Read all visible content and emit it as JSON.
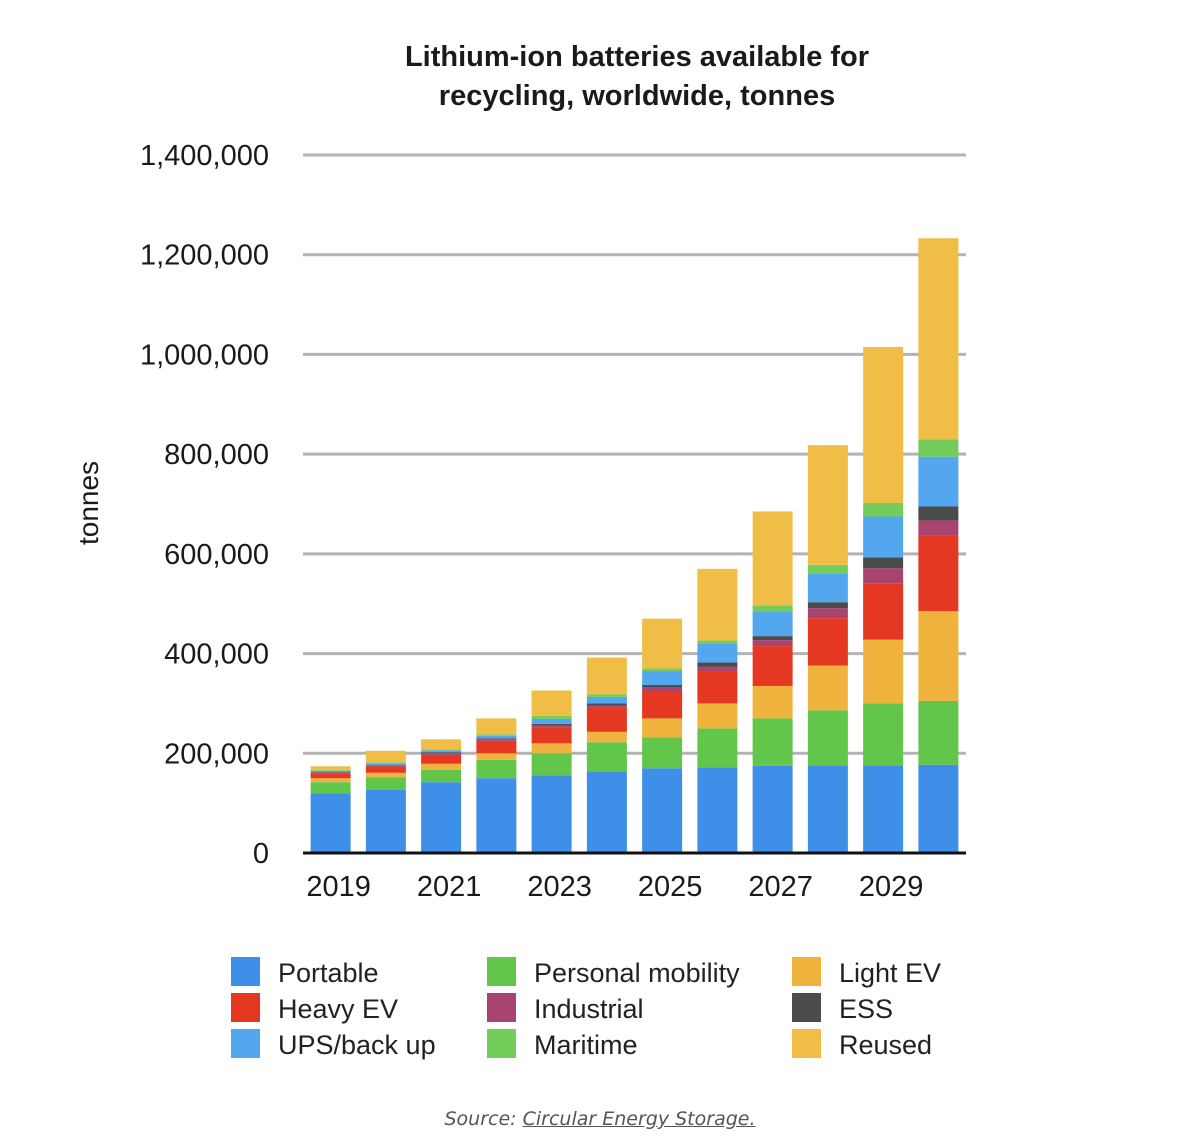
{
  "chart_data": {
    "type": "bar",
    "stacked": true,
    "title": [
      "Lithium-ion batteries available for",
      "recycling, worldwide, tonnes"
    ],
    "ylabel": "tonnes",
    "xlabel": "",
    "ylim": [
      0,
      1400000
    ],
    "yticks": [
      0,
      200000,
      400000,
      600000,
      800000,
      1000000,
      1200000,
      1400000
    ],
    "ytick_labels": [
      "0",
      "200,000",
      "400,000",
      "600,000",
      "800,000",
      "1,000,000",
      "1,200,000",
      "1,400,000"
    ],
    "categories": [
      "2019",
      "2020",
      "2021",
      "2022",
      "2023",
      "2024",
      "2025",
      "2026",
      "2027",
      "2028",
      "2029",
      "2030"
    ],
    "xtick_labels": [
      "2019",
      "",
      "2021",
      "",
      "2023",
      "",
      "2025",
      "",
      "2027",
      "",
      "2029",
      ""
    ],
    "grid": true,
    "legend_position": "bottom",
    "series": [
      {
        "name": "Portable",
        "color": "#3d8fe8",
        "values": [
          120000,
          127000,
          142000,
          150000,
          156000,
          164000,
          170000,
          172000,
          175000,
          176000,
          176000,
          177000
        ]
      },
      {
        "name": "Personal mobility",
        "color": "#62c64b",
        "values": [
          22000,
          25000,
          25000,
          37000,
          44000,
          58000,
          62000,
          78000,
          95000,
          110000,
          124000,
          128000
        ]
      },
      {
        "name": "Light EV",
        "color": "#f0b33e",
        "values": [
          8000,
          9000,
          12000,
          13000,
          20000,
          21000,
          38000,
          50000,
          65000,
          90000,
          128000,
          180000
        ]
      },
      {
        "name": "Heavy EV",
        "color": "#e53823",
        "values": [
          10000,
          13000,
          18000,
          25000,
          32000,
          48000,
          55000,
          65000,
          80000,
          95000,
          113000,
          152000
        ]
      },
      {
        "name": "Industrial",
        "color": "#a8446f",
        "values": [
          2000,
          2000,
          3000,
          3000,
          4000,
          5000,
          8000,
          9000,
          12000,
          20000,
          30000,
          30000
        ]
      },
      {
        "name": "ESS",
        "color": "#4b4b4b",
        "values": [
          1000,
          1000,
          2000,
          2000,
          3000,
          4000,
          4000,
          8000,
          8000,
          12000,
          22000,
          28000
        ]
      },
      {
        "name": "UPS/back up",
        "color": "#53a7ee",
        "values": [
          2000,
          3000,
          4000,
          5000,
          10000,
          13000,
          28000,
          38000,
          50000,
          58000,
          82000,
          100000
        ]
      },
      {
        "name": "Maritime",
        "color": "#74cd5a",
        "values": [
          2000,
          2000,
          2000,
          3000,
          6000,
          5000,
          5000,
          6000,
          12000,
          17000,
          27000,
          35000
        ]
      },
      {
        "name": "Reused",
        "color": "#f0bd47",
        "values": [
          7000,
          23000,
          20000,
          32000,
          51000,
          74000,
          100000,
          144000,
          188000,
          240000,
          313000,
          403000
        ]
      }
    ],
    "legend_order": [
      "Portable",
      "Heavy EV",
      "UPS/back up",
      "Personal mobility",
      "Industrial",
      "Maritime",
      "Light EV",
      "ESS",
      "Reused"
    ],
    "source_prefix": "Source: ",
    "source_link": "Circular Energy Storage."
  }
}
